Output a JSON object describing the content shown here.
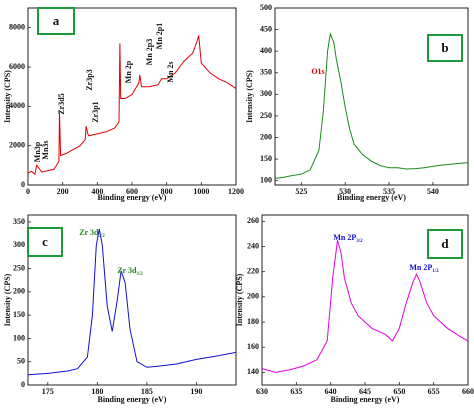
{
  "chart_data": [
    {
      "type": "line",
      "panel_label": "a",
      "x_label": "Binding energy (eV)",
      "y_label": "Intensity (CPS)",
      "color": "#e00000",
      "xlim": [
        0,
        1200
      ],
      "ylim": [
        0,
        9000
      ],
      "xticks": [
        0,
        200,
        400,
        600,
        800,
        1000,
        1200
      ],
      "yticks": [
        0,
        2000,
        4000,
        6000,
        8000
      ],
      "annotations": [
        "Mn3p",
        "Mn3s",
        "Zr3d5",
        "Zr3p3",
        "Zr3p1",
        "Mn 2p",
        "Mn 2p3",
        "Mn 2p1",
        "Mn 2s"
      ],
      "annotation_color": "#111111",
      "x": [
        0,
        20,
        40,
        50,
        80,
        100,
        150,
        178,
        182,
        188,
        220,
        260,
        300,
        330,
        335,
        345,
        350,
        400,
        450,
        500,
        525,
        530,
        535,
        560,
        600,
        640,
        645,
        655,
        700,
        750,
        770,
        800,
        850,
        900,
        950,
        975,
        985,
        1000,
        1050,
        1100,
        1150,
        1200
      ],
      "values": [
        600,
        700,
        550,
        1000,
        650,
        700,
        800,
        1200,
        3700,
        1500,
        1600,
        1800,
        2000,
        2300,
        3000,
        2600,
        2500,
        2600,
        2700,
        2900,
        3200,
        7200,
        4400,
        4400,
        4600,
        5200,
        5600,
        5000,
        5000,
        5100,
        5400,
        5400,
        5700,
        6300,
        6700,
        7300,
        7600,
        6200,
        5700,
        5400,
        5200,
        4900
      ]
    },
    {
      "type": "line",
      "panel_label": "b",
      "x_label": "Binding energy (eV)",
      "y_label": "Intensity (CPS)",
      "color": "#1a8a1a",
      "xlim": [
        522,
        544
      ],
      "ylim": [
        90,
        500
      ],
      "xticks": [
        525,
        530,
        535,
        540
      ],
      "yticks": [
        100,
        150,
        200,
        250,
        300,
        350,
        400,
        450,
        500
      ],
      "annotations": [
        "O1s"
      ],
      "annotation_color": "#e00000",
      "x": [
        522,
        523,
        524,
        525,
        526,
        527,
        527.5,
        528,
        528.3,
        528.7,
        529,
        529.5,
        530,
        530.5,
        531,
        532,
        533,
        534,
        535,
        536,
        537,
        538,
        539,
        540,
        541,
        542,
        543,
        544
      ],
      "values": [
        105,
        108,
        112,
        115,
        125,
        170,
        260,
        400,
        440,
        420,
        380,
        330,
        270,
        220,
        185,
        160,
        145,
        135,
        130,
        130,
        127,
        128,
        130,
        133,
        136,
        138,
        140,
        142
      ]
    },
    {
      "type": "line",
      "panel_label": "c",
      "x_label": "Binding energy (eV)",
      "y_label": "Intensity (CPS)",
      "color": "#1010d0",
      "xlim": [
        173,
        194
      ],
      "ylim": [
        0,
        365
      ],
      "xticks": [
        175,
        180,
        185,
        190
      ],
      "yticks": [
        0,
        50,
        100,
        150,
        200,
        250,
        300,
        350
      ],
      "annotations": [
        {
          "text": "Zr 3d",
          "sub": "5/2"
        },
        {
          "text": "Zr 3d",
          "sub": "3/2"
        }
      ],
      "annotation_color": "#1a8a1a",
      "x": [
        173,
        175,
        177,
        178,
        179,
        179.5,
        179.9,
        180.2,
        180.5,
        181,
        181.5,
        182,
        182.4,
        182.8,
        183.3,
        184,
        185,
        186,
        188,
        190,
        192,
        194
      ],
      "values": [
        22,
        25,
        30,
        35,
        60,
        150,
        300,
        335,
        300,
        170,
        115,
        180,
        245,
        220,
        120,
        50,
        38,
        40,
        45,
        55,
        62,
        70
      ]
    },
    {
      "type": "line",
      "panel_label": "d",
      "x_label": "Binding energy (eV)",
      "y_label": "Intensity (CPS)",
      "color": "#e000e0",
      "xlim": [
        630,
        660
      ],
      "ylim": [
        130,
        265
      ],
      "xticks": [
        630,
        635,
        640,
        645,
        650,
        655,
        660
      ],
      "yticks": [
        140,
        160,
        180,
        200,
        220,
        240,
        260
      ],
      "annotations": [
        {
          "text": "Mn 2P",
          "sub": "3/2"
        },
        {
          "text": "Mn 2P",
          "sub": "1/2"
        }
      ],
      "annotation_color": "#1010d0",
      "x": [
        630,
        632,
        634,
        636,
        638,
        639.5,
        640.3,
        641,
        641.5,
        642,
        643,
        644,
        646,
        648,
        649,
        650,
        651,
        652,
        652.5,
        653,
        654,
        655,
        657,
        659,
        660
      ],
      "values": [
        143,
        140,
        142,
        145,
        150,
        165,
        215,
        245,
        235,
        215,
        195,
        185,
        175,
        170,
        165,
        175,
        195,
        212,
        218,
        212,
        195,
        185,
        175,
        168,
        165
      ]
    }
  ]
}
